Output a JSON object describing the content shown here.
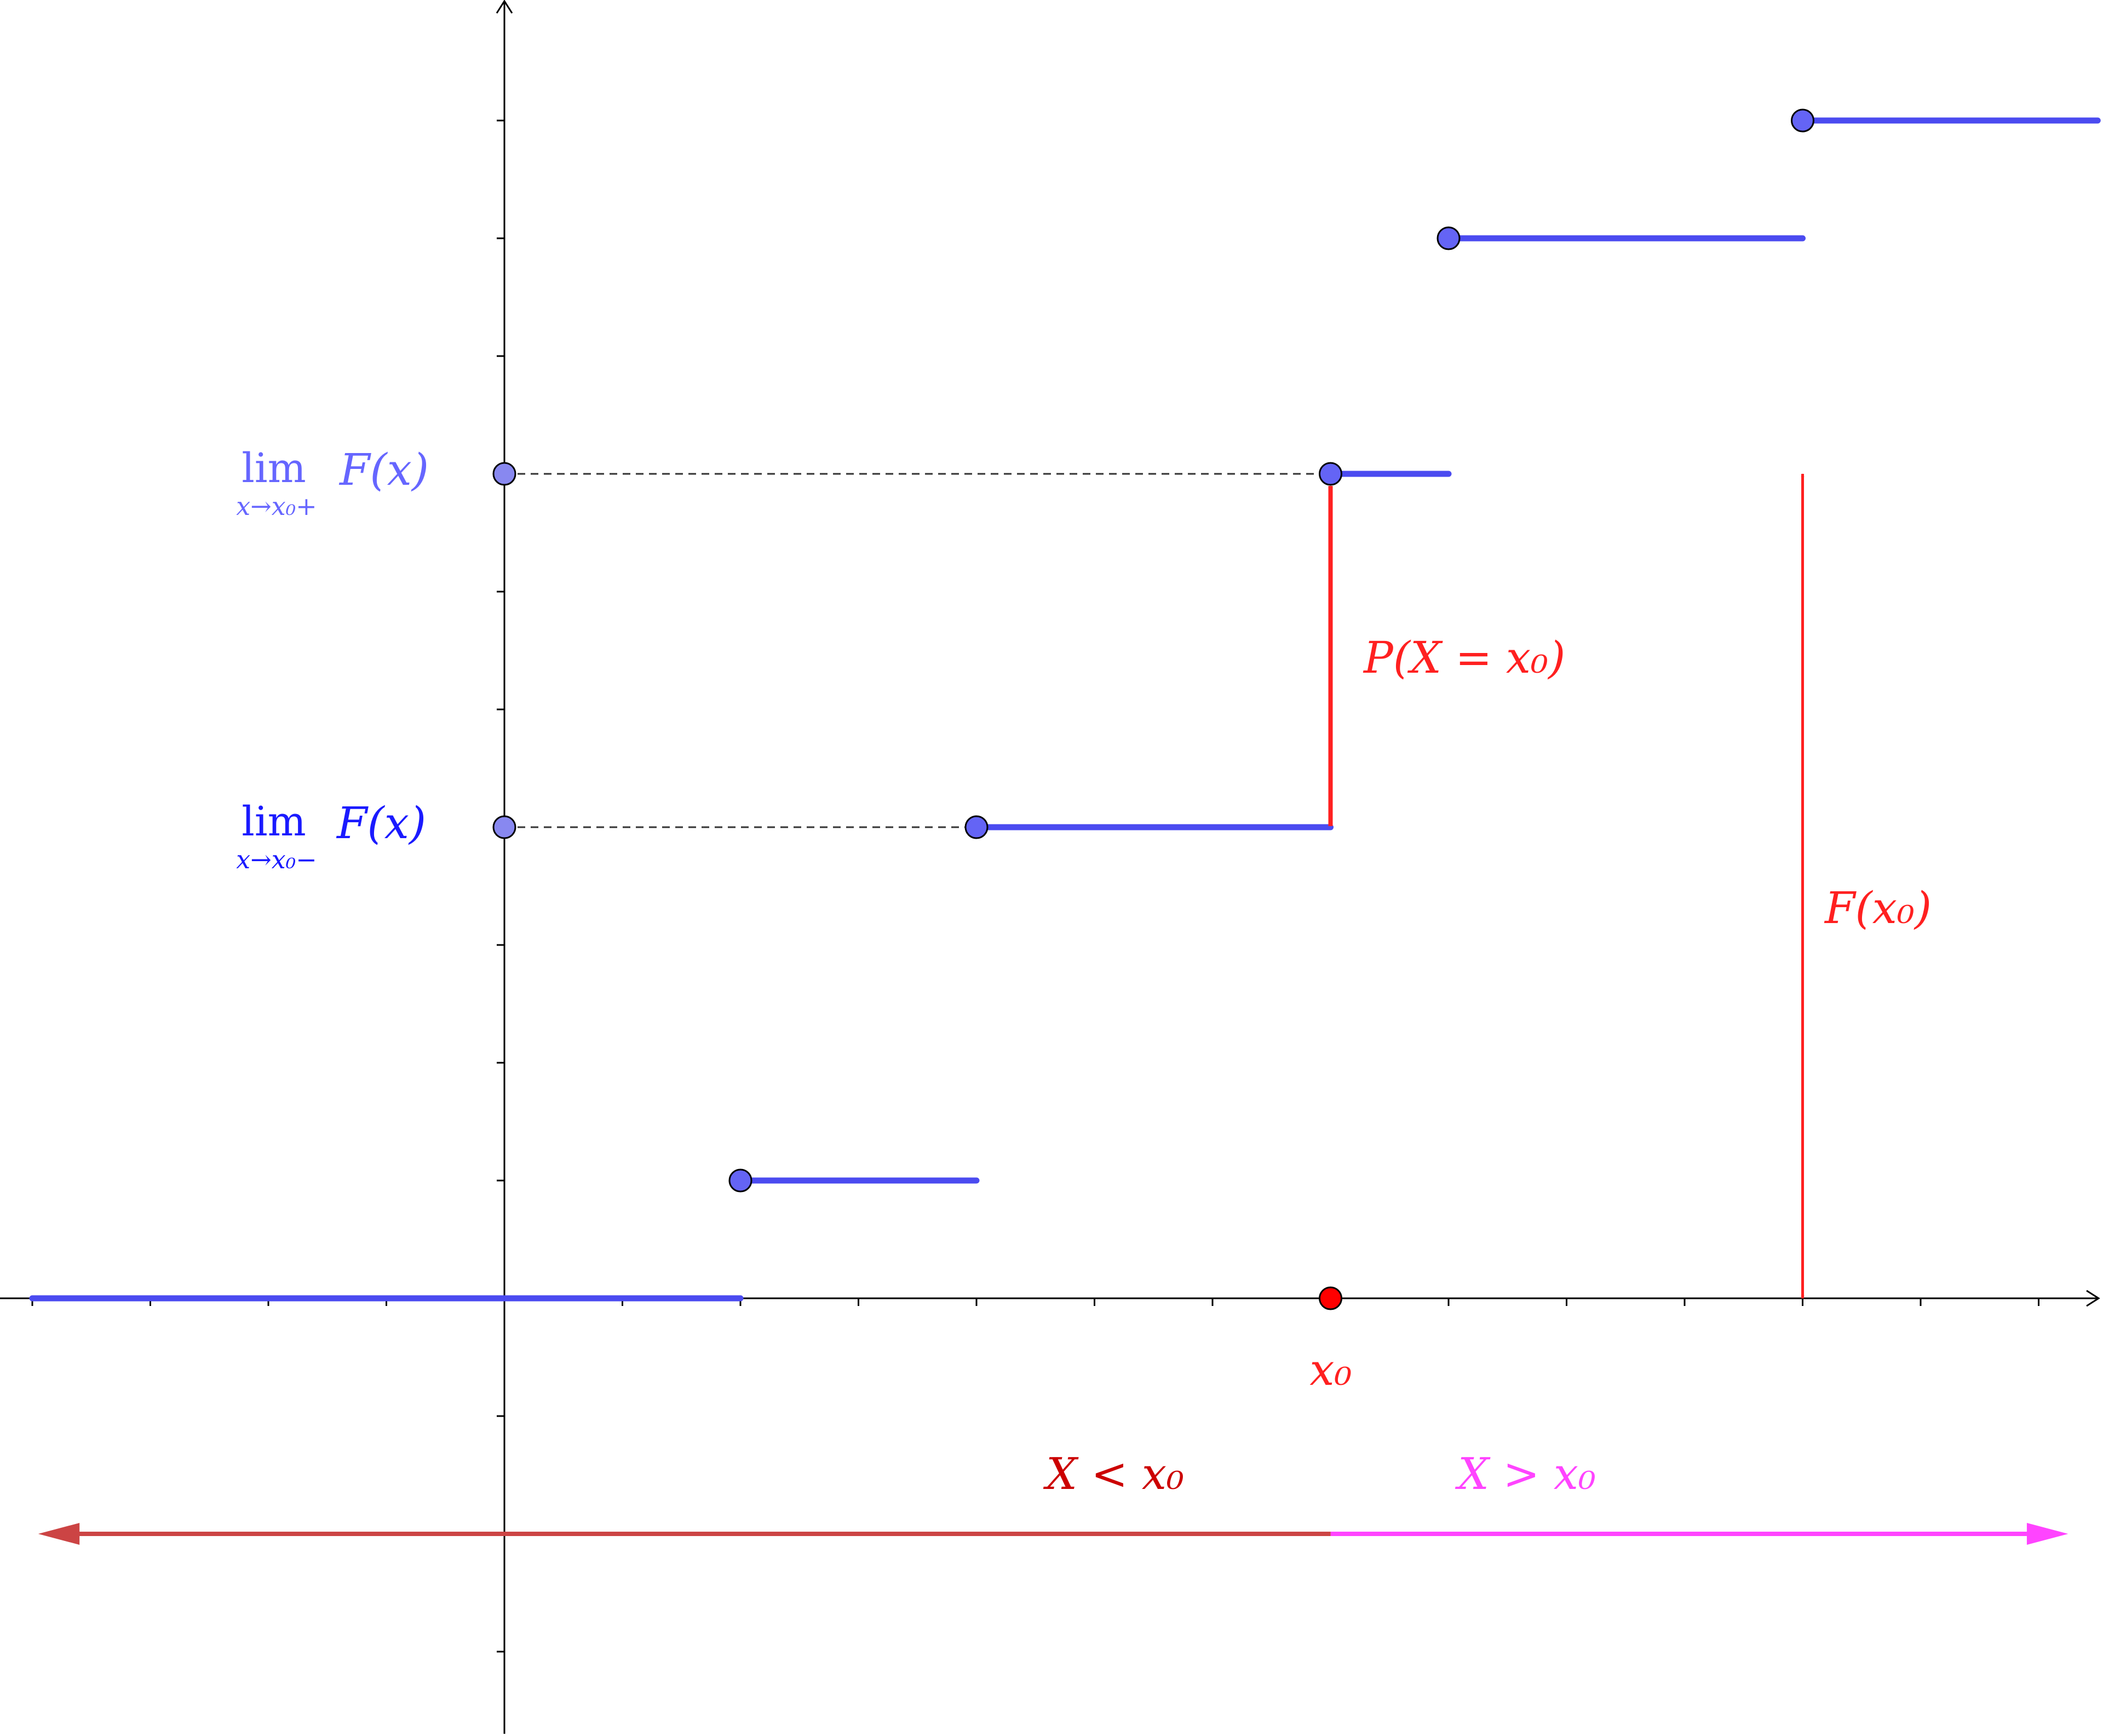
{
  "colors": {
    "axis": "#000000",
    "step": "#4b4bf0",
    "point_fill": "#6464f5",
    "limit_plus": "#6666ff",
    "limit_minus": "#1a1aff",
    "red": "#ff2020",
    "dark_red": "#cc4444",
    "dark_red_text": "#cc0000",
    "magenta": "#ff44ff",
    "dash": "#333333"
  },
  "labels": {
    "lim_plus": {
      "word": "lim",
      "sub": "x→x₀+",
      "func": "F(x)"
    },
    "lim_minus": {
      "word": "lim",
      "sub": "x→x₀−",
      "func": "F(x)"
    },
    "jump": "P(X = x₀)",
    "cdf_value": "F(x₀)",
    "x0": "x₀",
    "less": "X < x₀",
    "greater": "X > x₀"
  },
  "diagram": {
    "x_range": [
      -4,
      13.5
    ],
    "y_range": [
      -3.7,
      11
    ],
    "x0": 7,
    "steps": [
      {
        "from": -4,
        "to": 2,
        "level": 0,
        "dot": false
      },
      {
        "from": 2,
        "to": 4,
        "level": 1,
        "dot": true
      },
      {
        "from": 4,
        "to": 7,
        "level": 4,
        "dot": true
      },
      {
        "from": 7,
        "to": 8,
        "level": 7,
        "dot": true
      },
      {
        "from": 8,
        "to": 11,
        "level": 9,
        "dot": true
      },
      {
        "from": 11,
        "to": 13.5,
        "level": 10,
        "dot": true
      }
    ],
    "limit_minus": 4,
    "limit_plus": 7,
    "cdf_at_x0": 7
  }
}
